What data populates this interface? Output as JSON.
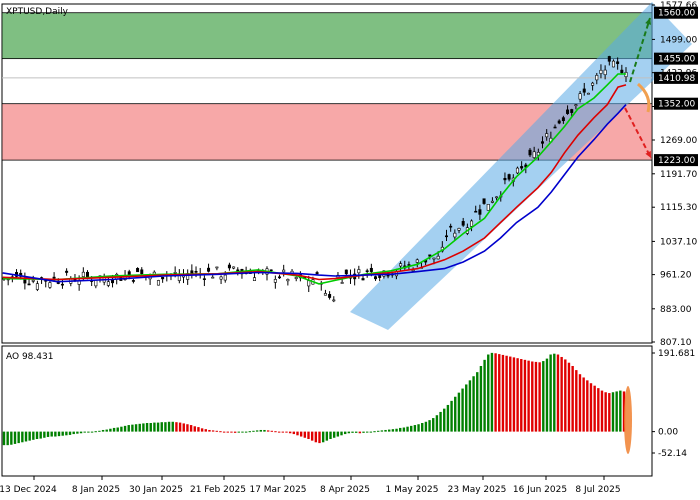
{
  "chart_data": [
    {
      "type": "candlestick",
      "title": "XPTUSD,Daily",
      "ylim": [
        807.1,
        1577.66
      ],
      "y_ticks": [
        "1577.66",
        "1499.00",
        "1422.96",
        "1345.61",
        "1269.00",
        "1191.70",
        "1115.30",
        "1037.10",
        "961.20",
        "883.00",
        "807.10"
      ],
      "x_ticks": [
        "13 Dec 2024",
        "8 Jan 2025",
        "30 Jan 2025",
        "21 Feb 2025",
        "17 Mar 2025",
        "8 Apr 2025",
        "1 May 2025",
        "23 May 2025",
        "16 Jun 2025",
        "8 Jul 2025"
      ],
      "price_tags": [
        {
          "value": 1560.0,
          "text": "1560.00",
          "color": "#000000"
        },
        {
          "value": 1455.0,
          "text": "1455.00",
          "color": "#000000"
        },
        {
          "value": 1410.98,
          "text": "1410.98",
          "color": "#000000"
        },
        {
          "value": 1352.0,
          "text": "1352.00",
          "color": "#000000"
        },
        {
          "value": 1223.0,
          "text": "1223.00",
          "color": "#000000"
        }
      ],
      "zones": [
        {
          "name": "resistance",
          "from": 1455.0,
          "to": 1560.0,
          "color": "#7fbf82"
        },
        {
          "name": "support",
          "from": 1223.0,
          "to": 1352.0,
          "color": "#f7a8a8"
        }
      ],
      "current_price": 1410.98,
      "channel_color": "#5aaae6",
      "ma_series": [
        {
          "color": "#00cc00",
          "points": [
            [
              -0.5,
              952
            ],
            [
              20,
              950
            ],
            [
              40,
              958
            ],
            [
              60,
              962
            ],
            [
              80,
              963
            ],
            [
              95,
              972
            ],
            [
              110,
              958
            ],
            [
              118,
              940
            ],
            [
              124,
              948
            ],
            [
              135,
              962
            ],
            [
              145,
              970
            ],
            [
              155,
              985
            ],
            [
              165,
              1020
            ],
            [
              172,
              1055
            ],
            [
              180,
              1090
            ],
            [
              186,
              1140
            ],
            [
              192,
              1185
            ],
            [
              200,
              1230
            ],
            [
              205,
              1265
            ],
            [
              210,
              1300
            ],
            [
              215,
              1340
            ],
            [
              221,
              1365
            ],
            [
              226,
              1395
            ],
            [
              230,
              1420
            ],
            [
              233,
              1420
            ]
          ]
        },
        {
          "color": "#dd0000",
          "points": [
            [
              -0.5,
              955
            ],
            [
              20,
              950
            ],
            [
              40,
              955
            ],
            [
              60,
              960
            ],
            [
              80,
              963
            ],
            [
              95,
              968
            ],
            [
              110,
              960
            ],
            [
              118,
              950
            ],
            [
              124,
              952
            ],
            [
              135,
              960
            ],
            [
              145,
              966
            ],
            [
              155,
              975
            ],
            [
              165,
              995
            ],
            [
              172,
              1015
            ],
            [
              180,
              1045
            ],
            [
              186,
              1080
            ],
            [
              192,
              1115
            ],
            [
              200,
              1160
            ],
            [
              205,
              1195
            ],
            [
              210,
              1240
            ],
            [
              215,
              1280
            ],
            [
              221,
              1320
            ],
            [
              226,
              1350
            ],
            [
              230,
              1390
            ],
            [
              233,
              1395
            ]
          ]
        },
        {
          "color": "#0000cc",
          "points": [
            [
              -0.5,
              965
            ],
            [
              20,
              945
            ],
            [
              40,
              950
            ],
            [
              60,
              958
            ],
            [
              80,
              962
            ],
            [
              95,
              966
            ],
            [
              110,
              964
            ],
            [
              118,
              960
            ],
            [
              124,
              958
            ],
            [
              135,
              960
            ],
            [
              145,
              962
            ],
            [
              155,
              968
            ],
            [
              165,
              975
            ],
            [
              172,
              990
            ],
            [
              180,
              1015
            ],
            [
              186,
              1045
            ],
            [
              192,
              1080
            ],
            [
              200,
              1115
            ],
            [
              205,
              1150
            ],
            [
              210,
              1190
            ],
            [
              215,
              1230
            ],
            [
              221,
              1270
            ],
            [
              226,
              1305
            ],
            [
              230,
              1330
            ],
            [
              233,
              1350
            ]
          ]
        }
      ]
    },
    {
      "type": "bar",
      "title": "AO 98.431",
      "ylim": [
        -52.14,
        191.681
      ],
      "y_ticks": [
        "191.681",
        "0.00",
        "-52.14"
      ],
      "positive_color": "#008000",
      "negative_color": "#e00000",
      "values": [
        -33,
        -33,
        -32,
        -30,
        -28,
        -26,
        -24,
        -22,
        -20,
        -18,
        -17,
        -15,
        -13,
        -12,
        -12,
        -11,
        -10,
        -9,
        -8,
        -6,
        -5,
        -4,
        -2,
        -1,
        0,
        1,
        2,
        4,
        5,
        7,
        9,
        10,
        12,
        14,
        16,
        17,
        18,
        19,
        20,
        21,
        21,
        22,
        22,
        23,
        23,
        24,
        24,
        23,
        22,
        20,
        18,
        16,
        13,
        11,
        8,
        6,
        4,
        3,
        2,
        1,
        0,
        -1,
        -2,
        -3,
        -2,
        -1,
        0,
        1,
        2,
        3,
        4,
        4,
        3,
        2,
        1,
        0,
        -1,
        -2,
        -4,
        -6,
        -9,
        -12,
        -15,
        -18,
        -22,
        -26,
        -28,
        -26,
        -22,
        -18,
        -15,
        -12,
        -9,
        -6,
        -4,
        -3,
        -3,
        -4,
        -3,
        -2,
        -1,
        1,
        2,
        3,
        4,
        5,
        6,
        7,
        9,
        10,
        12,
        14,
        16,
        18,
        21,
        24,
        28,
        33,
        40,
        48,
        56,
        65,
        75,
        85,
        95,
        105,
        115,
        125,
        135,
        145,
        160,
        175,
        188,
        192,
        191,
        189,
        187,
        185,
        183,
        181,
        179,
        177,
        175,
        173,
        171,
        170,
        169,
        172,
        178,
        188,
        190,
        188,
        182,
        176,
        168,
        160,
        150,
        140,
        132,
        125,
        118,
        112,
        106,
        100,
        96,
        94,
        96,
        98,
        100,
        98
      ]
    }
  ]
}
